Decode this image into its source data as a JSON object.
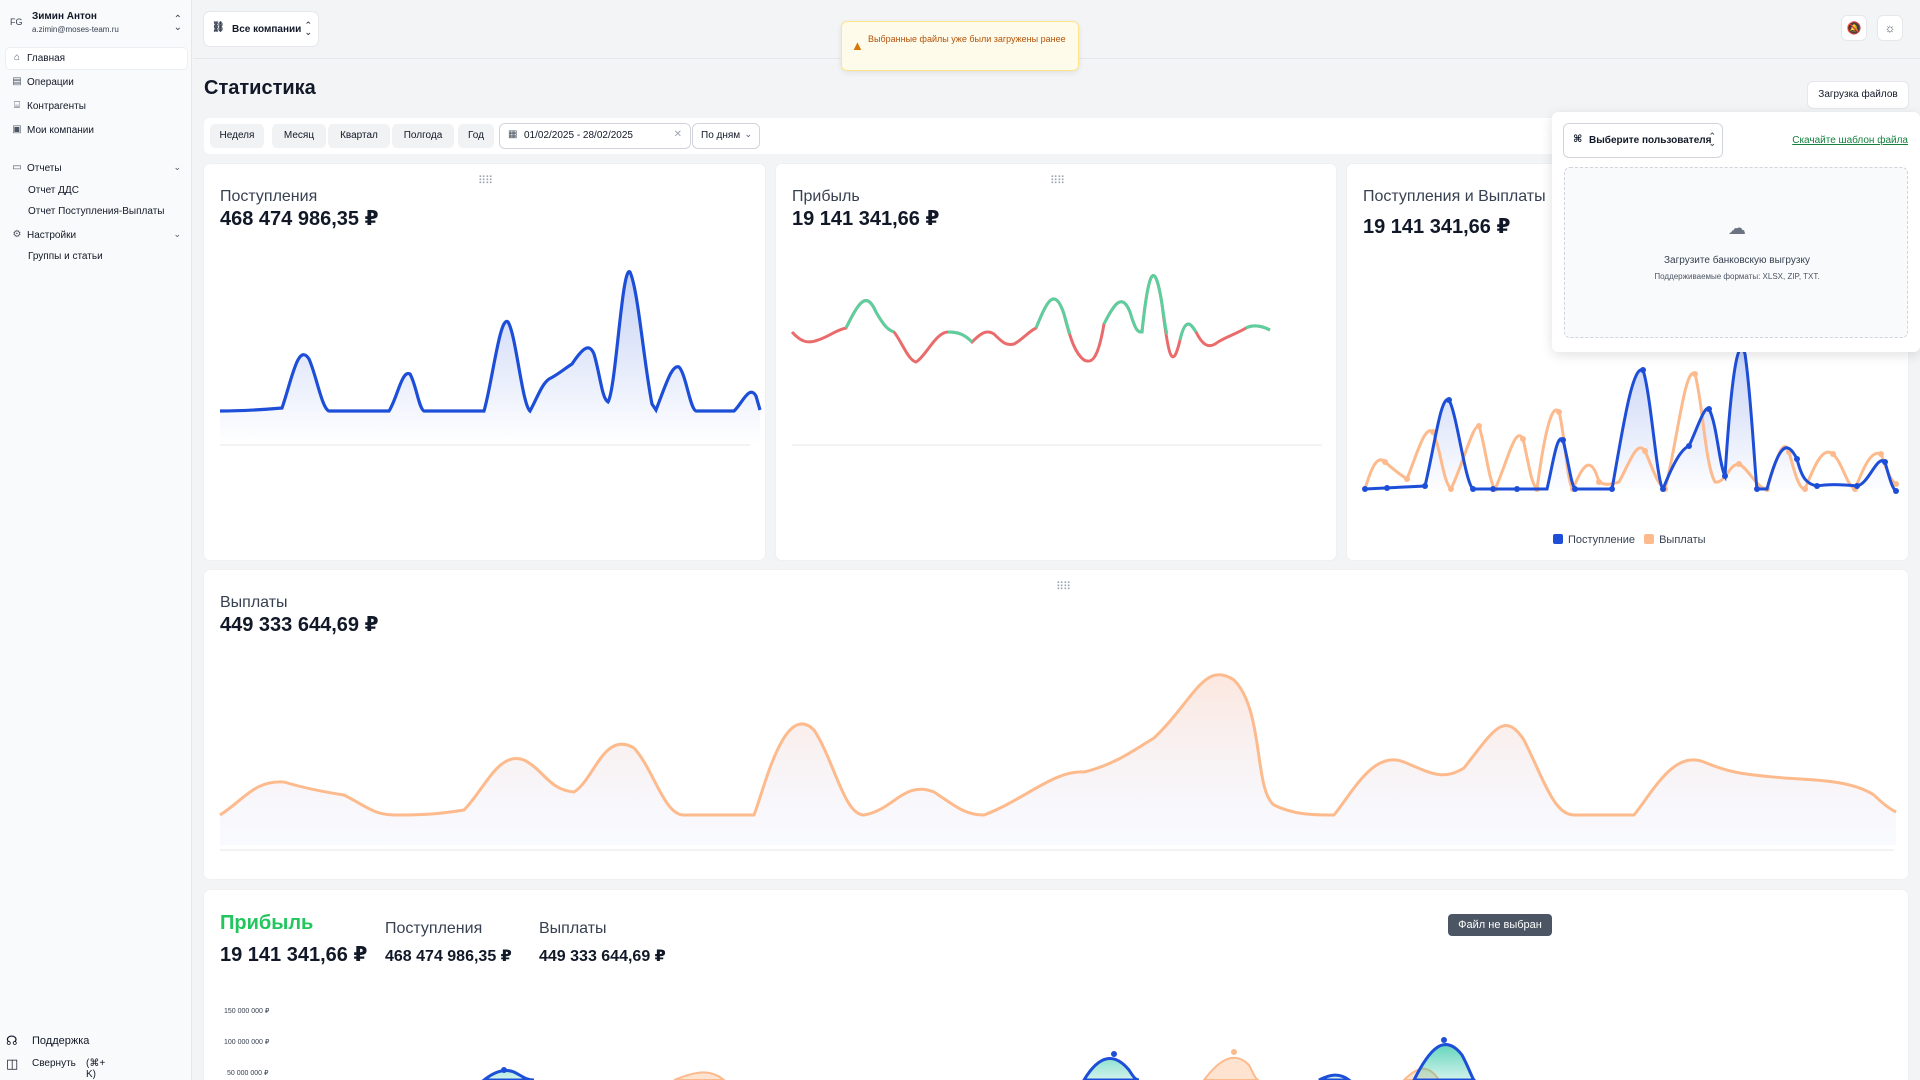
{
  "user": {
    "initials": "FG",
    "name": "Зимин Антон",
    "email": "a.zimin@moses-team.ru"
  },
  "sidebar": {
    "items": [
      {
        "label": "Главная",
        "icon": "home-icon"
      },
      {
        "label": "Операции",
        "icon": "file-icon"
      },
      {
        "label": "Контрагенты",
        "icon": "bank-icon"
      },
      {
        "label": "Мои компании",
        "icon": "briefcase-icon"
      }
    ],
    "groups": [
      {
        "label": "Отчеты",
        "icon": "report-icon",
        "children": [
          "Отчет ДДС",
          "Отчет Поступления-Выплаты"
        ]
      },
      {
        "label": "Настройки",
        "icon": "settings-icon",
        "children": [
          "Группы и статьи"
        ]
      }
    ],
    "support": "Поддержка",
    "collapse": "Свернуть",
    "collapse_shortcut": "(⌘+ K)"
  },
  "header": {
    "companies": "Все компании"
  },
  "toast": {
    "text": "Выбранные файлы уже были загружены ранее",
    "color": "#d97706"
  },
  "page": {
    "title": "Статистика",
    "upload_button": "Загрузка файлов"
  },
  "filters": {
    "periods": [
      "Неделя",
      "Месяц",
      "Квартал",
      "Полгода",
      "Год"
    ],
    "date_range": "01/02/2025 - 28/02/2025",
    "grouping": "По дням"
  },
  "cards": {
    "income": {
      "title": "Поступления",
      "value": "468 474 986,35 ₽"
    },
    "profit": {
      "title": "Прибыль",
      "value": "19 141 341,66 ₽"
    },
    "combined": {
      "title": "Поступления и Выплаты",
      "value": "19 141 341,66 ₽",
      "legend": [
        "Поступление",
        "Выплаты"
      ]
    },
    "payouts": {
      "title": "Выплаты",
      "value": "449 333 644,69 ₽"
    }
  },
  "summary": {
    "profit_title": "Прибыль",
    "profit_value": "19 141 341,66 ₽",
    "income_title": "Поступления",
    "income_value": "468 474 986,35 ₽",
    "payouts_title": "Выплаты",
    "payouts_value": "449 333 644,69 ₽",
    "yticks": [
      "150 000 000 ₽",
      "100 000 000 ₽",
      "50 000 000 ₽"
    ]
  },
  "upload_panel": {
    "user_select": "Выберите пользователя",
    "template_link": "Скачайте шаблон файла",
    "drop_title": "Загрузите банковскую выгрузку",
    "drop_formats": "Поддерживаемые форматы: XLSX, ZIP, TXT."
  },
  "tooltip": "Файл не выбран",
  "colors": {
    "income": "#1d4ed8",
    "payouts": "#fdba8c",
    "profit_pos": "#5ccf9e",
    "profit_neg": "#ea6b6b",
    "accent_green": "#22c55e"
  }
}
